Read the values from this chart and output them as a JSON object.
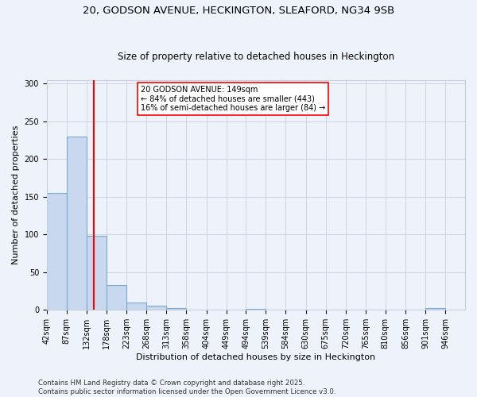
{
  "title1": "20, GODSON AVENUE, HECKINGTON, SLEAFORD, NG34 9SB",
  "title2": "Size of property relative to detached houses in Heckington",
  "xlabel": "Distribution of detached houses by size in Heckington",
  "ylabel": "Number of detached properties",
  "bin_labels": [
    "42sqm",
    "87sqm",
    "132sqm",
    "178sqm",
    "223sqm",
    "268sqm",
    "313sqm",
    "358sqm",
    "404sqm",
    "449sqm",
    "494sqm",
    "539sqm",
    "584sqm",
    "630sqm",
    "675sqm",
    "720sqm",
    "765sqm",
    "810sqm",
    "856sqm",
    "901sqm",
    "946sqm"
  ],
  "bin_edges": [
    42,
    87,
    132,
    178,
    223,
    268,
    313,
    358,
    404,
    449,
    494,
    539,
    584,
    630,
    675,
    720,
    765,
    810,
    856,
    901,
    946
  ],
  "bar_heights": [
    155,
    230,
    98,
    33,
    10,
    6,
    2,
    0,
    0,
    0,
    1,
    0,
    0,
    0,
    0,
    0,
    0,
    0,
    0,
    2
  ],
  "bar_color": "#c8d8ee",
  "bar_edge_color": "#7aaad0",
  "vline_x": 149,
  "vline_color": "red",
  "annotation_text": "20 GODSON AVENUE: 149sqm\n← 84% of detached houses are smaller (443)\n16% of semi-detached houses are larger (84) →",
  "annotation_box_color": "white",
  "annotation_box_edge_color": "red",
  "ylim": [
    0,
    305
  ],
  "yticks": [
    0,
    50,
    100,
    150,
    200,
    250,
    300
  ],
  "footnote": "Contains HM Land Registry data © Crown copyright and database right 2025.\nContains public sector information licensed under the Open Government Licence v3.0.",
  "bg_color": "#eef2fa",
  "plot_bg_color": "#eef2fa",
  "grid_color": "#c8cfe0",
  "title_fontsize": 9.5,
  "subtitle_fontsize": 8.5,
  "axis_label_fontsize": 8,
  "tick_fontsize": 7,
  "annotation_fontsize": 7,
  "footnote_fontsize": 6.2
}
